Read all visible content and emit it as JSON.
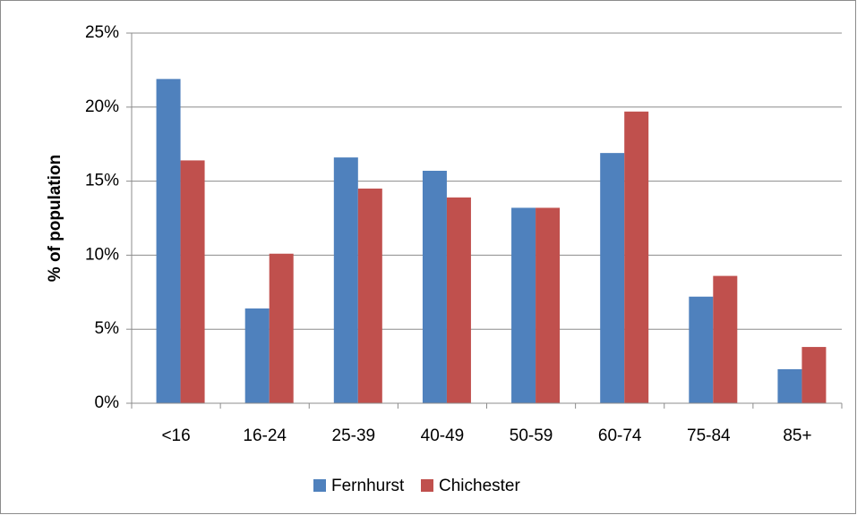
{
  "chart_data": {
    "type": "bar",
    "y_label": "% of population",
    "categories": [
      "<16",
      "16-24",
      "25-39",
      "40-49",
      "50-59",
      "60-74",
      "75-84",
      "85+"
    ],
    "series": [
      {
        "name": "Fernhurst",
        "color": "#4f81bd",
        "values": [
          21.9,
          6.4,
          16.6,
          15.7,
          13.2,
          16.9,
          7.2,
          2.3
        ]
      },
      {
        "name": "Chichester",
        "color": "#c0504d",
        "values": [
          16.4,
          10.1,
          14.5,
          13.9,
          13.2,
          19.7,
          8.6,
          3.8
        ]
      }
    ],
    "ylim": [
      0,
      25
    ],
    "yticks": [
      {
        "value": 0,
        "label": "0%"
      },
      {
        "value": 5,
        "label": "5%"
      },
      {
        "value": 10,
        "label": "10%"
      },
      {
        "value": 15,
        "label": "15%"
      },
      {
        "value": 20,
        "label": "20%"
      },
      {
        "value": 25,
        "label": "25%"
      }
    ],
    "grid": true,
    "legend": "bottom"
  }
}
